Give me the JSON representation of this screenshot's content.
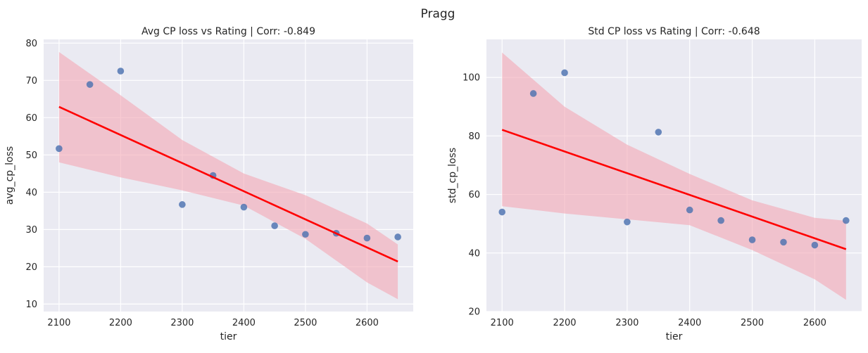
{
  "figure": {
    "suptitle": "Pragg"
  },
  "colors": {
    "background": "#eaeaf2",
    "grid": "#ffffff",
    "points": "#4c72b0",
    "line": "#ff0000",
    "band": "#f4a6b4"
  },
  "chart_data": [
    {
      "type": "scatter",
      "title": "Avg CP loss vs Rating | Corr: -0.849",
      "xlabel": "tier",
      "ylabel": "avg_cp_loss",
      "xlim": [
        2075,
        2675
      ],
      "ylim": [
        8,
        81
      ],
      "xticks": [
        2100,
        2200,
        2300,
        2400,
        2500,
        2600
      ],
      "yticks": [
        10,
        20,
        30,
        40,
        50,
        60,
        70,
        80
      ],
      "grid": true,
      "x": [
        2100,
        2150,
        2200,
        2300,
        2350,
        2400,
        2450,
        2500,
        2550,
        2600,
        2650
      ],
      "y": [
        51.7,
        68.9,
        72.5,
        36.7,
        44.5,
        36.0,
        31.0,
        28.7,
        29.0,
        27.7,
        28.0
      ],
      "regression": {
        "x": [
          2100,
          2650
        ],
        "y": [
          62.9,
          21.4
        ]
      },
      "ci_band": {
        "x": [
          2100,
          2200,
          2300,
          2400,
          2500,
          2600,
          2650
        ],
        "upper": [
          77.6,
          66.0,
          54.0,
          45.0,
          39.2,
          31.6,
          26.0
        ],
        "lower": [
          48.0,
          44.0,
          40.5,
          36.4,
          27.5,
          15.8,
          11.3
        ]
      }
    },
    {
      "type": "scatter",
      "title": "Std CP loss vs Rating | Corr: -0.648",
      "xlabel": "tier",
      "ylabel": "std_cp_loss",
      "xlim": [
        2075,
        2675
      ],
      "ylim": [
        20,
        113
      ],
      "xticks": [
        2100,
        2200,
        2300,
        2400,
        2500,
        2600
      ],
      "yticks": [
        20,
        40,
        60,
        80,
        100
      ],
      "grid": true,
      "x": [
        2100,
        2150,
        2200,
        2300,
        2350,
        2400,
        2450,
        2500,
        2550,
        2600,
        2650
      ],
      "y": [
        54.0,
        94.5,
        101.6,
        50.6,
        81.3,
        54.7,
        51.1,
        44.5,
        43.7,
        42.7,
        51.1
      ],
      "regression": {
        "x": [
          2100,
          2650
        ],
        "y": [
          82.1,
          41.3
        ]
      },
      "ci_band": {
        "x": [
          2100,
          2200,
          2300,
          2400,
          2500,
          2600,
          2650
        ],
        "upper": [
          108.5,
          90.0,
          77.0,
          67.0,
          58.0,
          52.0,
          51.0
        ],
        "lower": [
          56.0,
          53.5,
          51.5,
          49.5,
          41.0,
          31.0,
          24.0
        ]
      }
    }
  ]
}
